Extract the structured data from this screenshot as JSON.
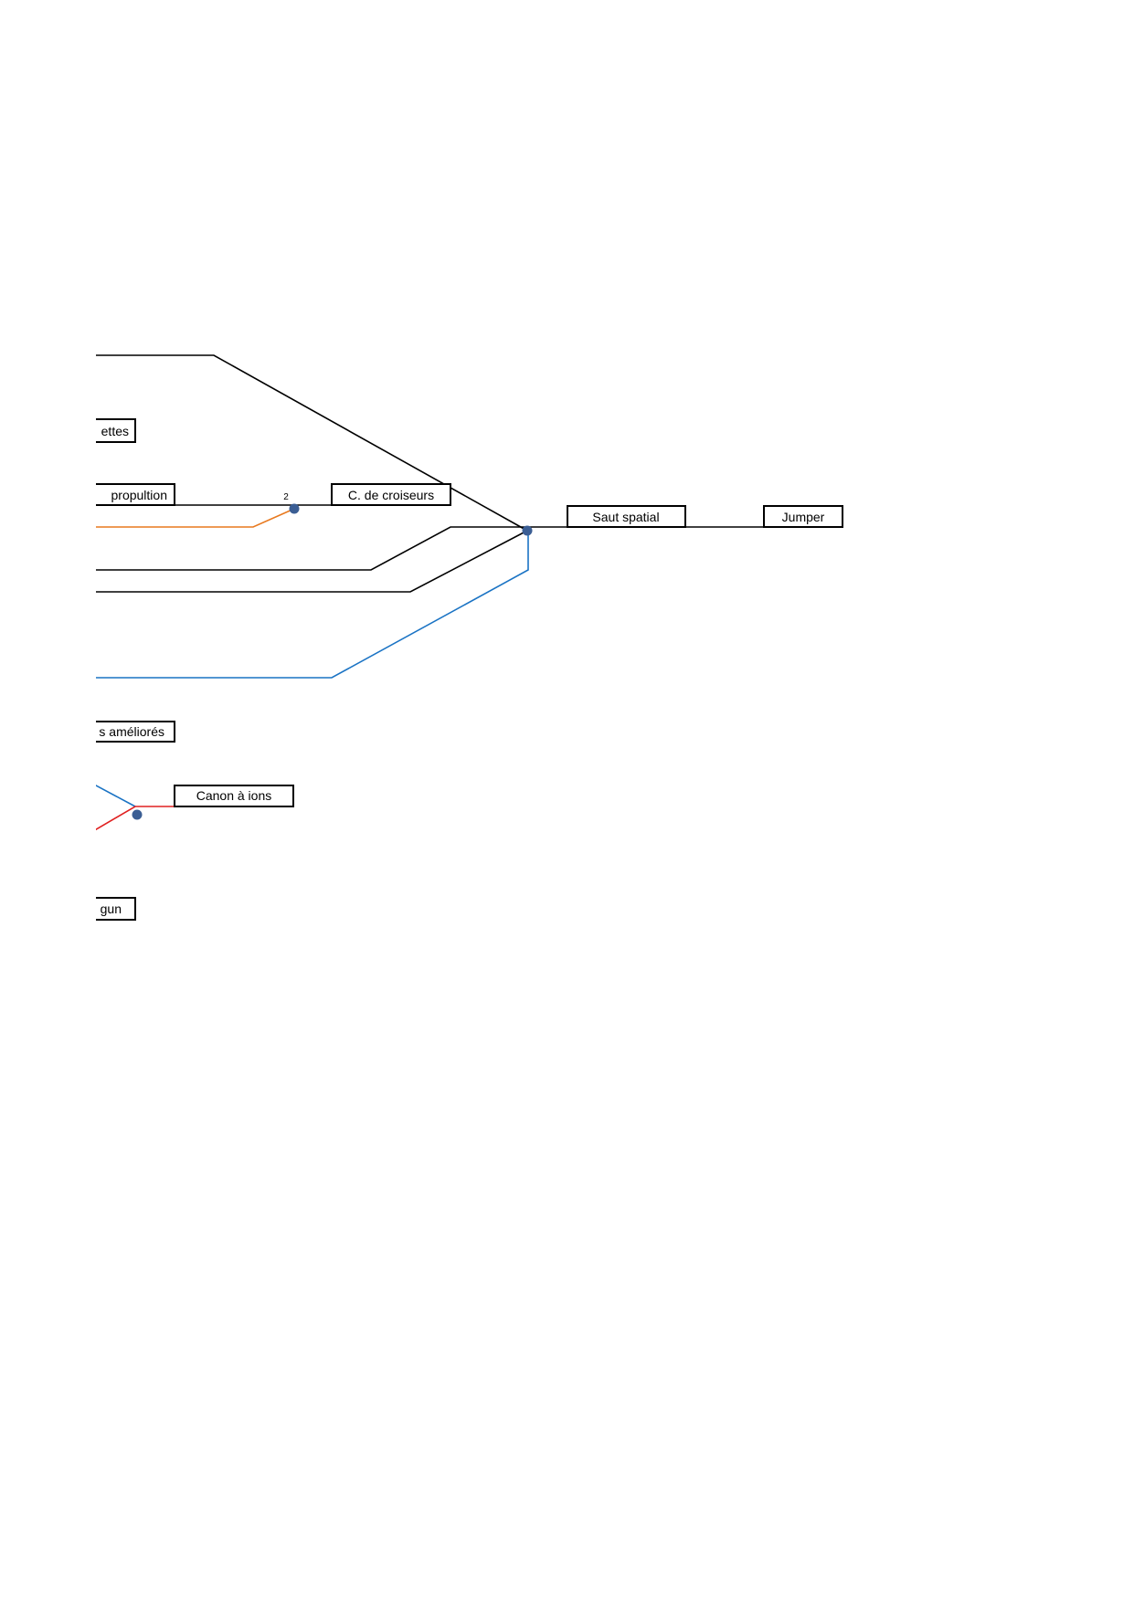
{
  "colors": {
    "black": "#000000",
    "orange": "#e8791f",
    "blue": "#1a73c4",
    "red": "#e02020",
    "node": "#3b5e94"
  },
  "nodes": {
    "roquettes": "ettes",
    "propulsion": "propultion",
    "croiseurs": "C. de croiseurs",
    "saut_spatial": "Saut spatial",
    "jumper": "Jumper",
    "ameliores": "s améliorés",
    "canon_ions": "Canon à ions",
    "gun": "gun"
  },
  "junction_label": "2"
}
